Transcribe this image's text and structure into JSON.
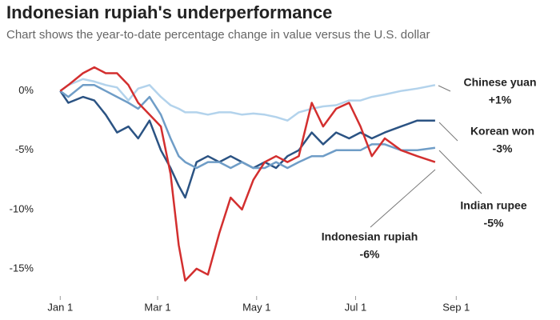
{
  "chart_data": {
    "type": "line",
    "title": "Indonesian rupiah's underperformance",
    "subtitle": "Chart shows the year-to-date percentage change in value versus the U.S. dollar",
    "x": [
      0,
      5,
      14,
      21,
      28,
      35,
      42,
      48,
      55,
      62,
      68,
      73,
      77,
      84,
      91,
      98,
      105,
      112,
      119,
      126,
      133,
      140,
      147,
      155,
      162,
      170,
      178,
      185,
      192,
      200,
      210,
      220,
      231
    ],
    "xlim": [
      -10,
      303
    ],
    "xticks": [
      {
        "value": 0,
        "label": "Jan 1"
      },
      {
        "value": 60,
        "label": "Mar 1"
      },
      {
        "value": 121,
        "label": "May 1"
      },
      {
        "value": 182,
        "label": "Jul 1"
      },
      {
        "value": 244,
        "label": "Sep 1"
      }
    ],
    "ylim": [
      -17.3,
      4.3
    ],
    "yticks": [
      {
        "value": 0,
        "label": "0%"
      },
      {
        "value": -5,
        "label": "-5%"
      },
      {
        "value": -10,
        "label": "-10%"
      },
      {
        "value": -15,
        "label": "-15%"
      }
    ],
    "grid": false,
    "series": [
      {
        "name": "Chinese yuan",
        "annotation": "+1%",
        "color": "#b3d3ec",
        "values": [
          0,
          0.5,
          1,
          0.8,
          0.5,
          0.3,
          -0.8,
          0.2,
          0.5,
          -0.5,
          -1.2,
          -1.5,
          -1.8,
          -1.8,
          -2,
          -1.8,
          -1.8,
          -2,
          -1.9,
          -2,
          -2.2,
          -2.5,
          -1.8,
          -1.5,
          -1.3,
          -1.2,
          -0.8,
          -0.8,
          -0.5,
          -0.3,
          0,
          0.2,
          0.5
        ]
      },
      {
        "name": "Korean won",
        "annotation": "-3%",
        "color": "#2b5383",
        "values": [
          0,
          -1,
          -0.5,
          -0.8,
          -2,
          -3.5,
          -3,
          -4,
          -2.5,
          -5,
          -6.5,
          -8,
          -9,
          -6,
          -5.5,
          -6,
          -5.5,
          -6,
          -6.5,
          -6,
          -6.5,
          -5.5,
          -5,
          -3.5,
          -4.5,
          -3.5,
          -4,
          -3.5,
          -4,
          -3.5,
          -3,
          -2.5,
          -2.5
        ]
      },
      {
        "name": "Indian rupee",
        "annotation": "-5%",
        "color": "#6f9dc7",
        "values": [
          0,
          -0.5,
          0.5,
          0.5,
          0,
          -0.5,
          -1,
          -1.5,
          -0.5,
          -2,
          -4,
          -5.5,
          -6,
          -6.5,
          -6,
          -6,
          -6.5,
          -6,
          -6.5,
          -6.5,
          -6,
          -6.5,
          -6,
          -5.5,
          -5.5,
          -5,
          -5,
          -5,
          -4.5,
          -4.5,
          -5,
          -5,
          -4.8
        ]
      },
      {
        "name": "Indonesian rupiah",
        "annotation": "-6%",
        "color": "#d32f2f",
        "values": [
          0,
          0.5,
          1.5,
          2,
          1.5,
          1.5,
          0.5,
          -1,
          -2,
          -3,
          -7,
          -13,
          -16,
          -15,
          -15.5,
          -12,
          -9,
          -10,
          -7.5,
          -6,
          -5.5,
          -6,
          -5.5,
          -1,
          -3,
          -1.5,
          -1,
          -3,
          -5.5,
          -4,
          -5,
          -5.5,
          -6
        ]
      }
    ]
  }
}
